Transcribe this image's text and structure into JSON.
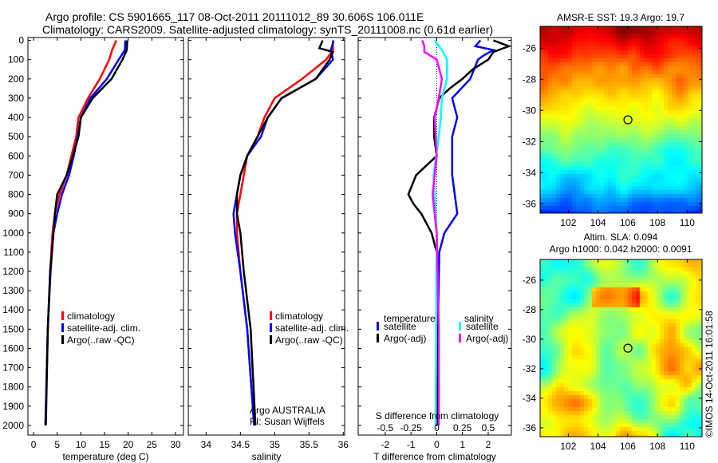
{
  "title_line1": "Argo profile: CS 5901665_117 08-Oct-2011 20111012_89 30.606S 106.011E",
  "title_line2": "Climatology: CARS2009. Satellite-adjusted climatology: synTS_20111008.nc (0.61d earlier)",
  "colors": {
    "climatology": "#ff0000",
    "satellite": "#0000ff",
    "argo": "#000000",
    "sal_satellite": "#00ffff",
    "sal_argo": "#ff00ff"
  },
  "chart_data": [
    {
      "type": "line",
      "name": "temperature",
      "xlabel": "temperature (deg C)",
      "ylabel": "depth",
      "xlim": [
        -1.2,
        31.7
      ],
      "ylim": [
        2050,
        -15
      ],
      "xticks": [
        0,
        5,
        10,
        15,
        20,
        25,
        30
      ],
      "yticks": [
        0,
        100,
        200,
        300,
        400,
        500,
        600,
        700,
        800,
        900,
        1000,
        1100,
        1200,
        1300,
        1400,
        1500,
        1600,
        1700,
        1800,
        1900,
        2000
      ],
      "legend": {
        "placement": "bottom-right",
        "entries": [
          "climatology",
          "satellite-adj. clim.",
          "Argo(..raw -QC)"
        ]
      },
      "series": [
        {
          "name": "climatology",
          "color": "#ff0000",
          "depth": [
            0,
            50,
            100,
            200,
            300,
            400,
            500,
            600,
            700,
            800,
            900,
            1000,
            1200,
            1500,
            2000
          ],
          "values": [
            17.5,
            16.6,
            16,
            14,
            11.5,
            9.5,
            9,
            8,
            7,
            5.5,
            4.5,
            4,
            3.5,
            3,
            2.5
          ]
        },
        {
          "name": "satellite-adj. clim.",
          "color": "#0000ff",
          "depth": [
            0,
            50,
            100,
            200,
            300,
            400,
            500,
            600,
            700,
            800,
            900,
            1000,
            1200,
            1500,
            2000
          ],
          "values": [
            19.4,
            19.3,
            18,
            15.5,
            12,
            10,
            9.3,
            8.5,
            7.5,
            6,
            5,
            4.2,
            3.6,
            3,
            2.5
          ]
        },
        {
          "name": "Argo(..raw -QC)",
          "color": "#000000",
          "depth": [
            0,
            50,
            100,
            200,
            300,
            400,
            500,
            600,
            700,
            800,
            900,
            1000,
            1200,
            1500,
            2000
          ],
          "values": [
            19.8,
            19.7,
            18.8,
            16.5,
            12.5,
            10,
            9.5,
            8.3,
            7,
            5,
            4.5,
            4.2,
            3.5,
            3,
            2.6
          ]
        }
      ]
    },
    {
      "type": "line",
      "name": "salinity",
      "xlabel": "salinity",
      "ylabel": "depth",
      "xlim": [
        33.74,
        36.02
      ],
      "ylim": [
        2050,
        -15
      ],
      "xticks": [
        34,
        34.5,
        35,
        35.5,
        36
      ],
      "legend": {
        "placement": "bottom-right",
        "entries": [
          "climatology",
          "satellite-adj. clim.",
          "Argo(..raw -QC)"
        ]
      },
      "annotation": [
        "Argo AUSTRALIA",
        "PI: Susan Wijffels"
      ],
      "series": [
        {
          "name": "climatology",
          "color": "#ff0000",
          "depth": [
            0,
            50,
            100,
            200,
            300,
            400,
            500,
            600,
            700,
            800,
            900,
            1000,
            1200,
            1500,
            2000
          ],
          "values": [
            35.85,
            35.85,
            35.75,
            35.4,
            35.0,
            34.85,
            34.75,
            34.6,
            34.55,
            34.5,
            34.45,
            34.45,
            34.5,
            34.6,
            34.7
          ]
        },
        {
          "name": "satellite-adj. clim.",
          "color": "#0000ff",
          "depth": [
            0,
            50,
            100,
            200,
            300,
            400,
            500,
            600,
            700,
            800,
            900,
            1000,
            1200,
            1500,
            2000
          ],
          "values": [
            35.86,
            35.82,
            35.85,
            35.6,
            35.1,
            34.9,
            34.8,
            34.6,
            34.5,
            34.45,
            34.4,
            34.42,
            34.5,
            34.6,
            34.7
          ]
        },
        {
          "name": "Argo(..raw -QC)",
          "color": "#000000",
          "depth": [
            0,
            40,
            60,
            100,
            200,
            300,
            400,
            500,
            600,
            700,
            800,
            900,
            1000,
            1200,
            1500,
            2000
          ],
          "values": [
            35.7,
            35.65,
            35.85,
            35.8,
            35.6,
            35.1,
            34.9,
            34.75,
            34.6,
            34.5,
            34.45,
            34.45,
            34.5,
            34.55,
            34.65,
            34.72
          ]
        }
      ]
    },
    {
      "type": "line",
      "name": "differences",
      "xlabel": "T difference from climatology",
      "x2label": "S difference from climatology",
      "xlim": [
        -3.05,
        2.9
      ],
      "ylim": [
        2050,
        -15
      ],
      "xticks": [
        -2,
        -1,
        0,
        1,
        2
      ],
      "x2ticks": [
        -0.5,
        -0.25,
        0,
        0.25,
        0.5
      ],
      "x2_scale": 4,
      "legend": {
        "placement": "bottom",
        "groups": [
          "temperature",
          "salinity"
        ],
        "entries": [
          "satellite",
          "Argo(-adj)",
          "satellite",
          "Argo(-adj)"
        ]
      },
      "series": [
        {
          "name": "temperature satellite",
          "color": "#0000ff",
          "units": "T",
          "depth": [
            0,
            30,
            50,
            80,
            100,
            200,
            300,
            400,
            500,
            600,
            700,
            800,
            900,
            1000,
            1100,
            1500,
            2000
          ],
          "values": [
            1.7,
            1.5,
            2.2,
            1.8,
            1.6,
            1.3,
            0.6,
            0.8,
            0.6,
            0.6,
            0.6,
            0.7,
            0.8,
            0.3,
            0.1,
            0.05,
            0
          ]
        },
        {
          "name": "temperature Argo(-adj)",
          "color": "#000000",
          "units": "T",
          "depth": [
            0,
            30,
            60,
            100,
            150,
            200,
            250,
            300,
            400,
            500,
            600,
            700,
            800,
            850,
            900,
            1000,
            1100,
            2000
          ],
          "values": [
            2.2,
            2.8,
            2.2,
            2.0,
            1.4,
            1.0,
            0.5,
            0.1,
            -0.1,
            -0.1,
            0,
            -0.8,
            -1.1,
            -0.9,
            -0.6,
            -0.2,
            0,
            0.05
          ]
        },
        {
          "name": "salinity satellite",
          "color": "#00ffff",
          "units": "S",
          "depth": [
            0,
            50,
            100,
            200,
            300,
            400,
            500,
            700,
            1000,
            2000
          ],
          "values": [
            -0.02,
            0.05,
            0.1,
            0.1,
            0.05,
            0.04,
            0.02,
            -0.03,
            0,
            -0.01
          ]
        },
        {
          "name": "salinity Argo(-adj)",
          "color": "#ff00ff",
          "units": "S",
          "depth": [
            0,
            30,
            60,
            100,
            200,
            300,
            400,
            500,
            600,
            700,
            800,
            1000,
            1500,
            2000
          ],
          "values": [
            -0.14,
            -0.12,
            -0.12,
            0,
            0.05,
            0.02,
            -0.02,
            -0.01,
            0,
            -0.02,
            -0.04,
            0,
            0.02,
            0.02
          ]
        }
      ]
    },
    {
      "type": "heatmap",
      "name": "sst-map",
      "title": "AMSR-E SST: 19.3 Argo: 19.7",
      "xlim": [
        100.1,
        111
      ],
      "ylim": [
        -36.6,
        -24.6
      ],
      "xticks": [
        102,
        104,
        106,
        108,
        110
      ],
      "yticks": [
        -26,
        -28,
        -30,
        -32,
        -34,
        -36
      ],
      "marker": {
        "lon": 106.011,
        "lat": -30.606
      }
    },
    {
      "type": "heatmap",
      "name": "sla-map",
      "title": [
        "Altim. SLA: 0.094",
        "Argo h1000: 0.042 h2000: 0.0091"
      ],
      "xlim": [
        100.1,
        111
      ],
      "ylim": [
        -36.6,
        -24.6
      ],
      "xticks": [
        102,
        104,
        106,
        108,
        110
      ],
      "yticks": [
        -26,
        -28,
        -30,
        -32,
        -34,
        -36
      ],
      "marker": {
        "lon": 106.011,
        "lat": -30.606
      }
    }
  ],
  "footer_stamp": "©IMOS 14-Oct-2011 16:01:58"
}
